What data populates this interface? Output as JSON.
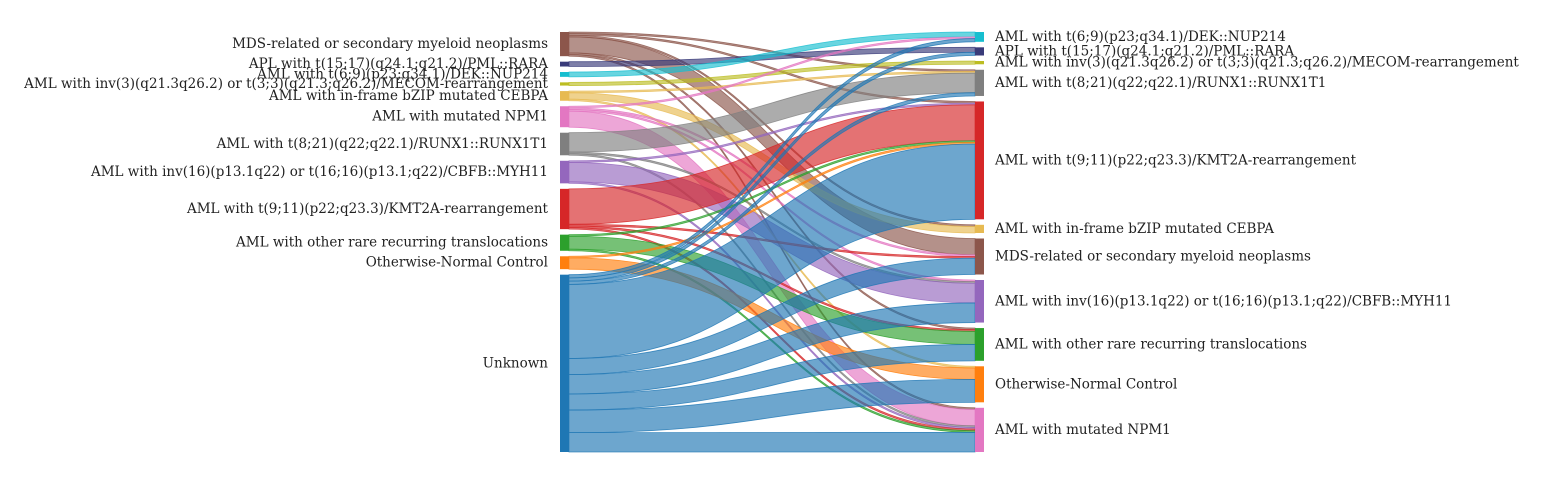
{
  "chart_data": {
    "type": "sankey",
    "left_nodes": [
      {
        "id": "mds",
        "label": "MDS-related or secondary myeloid neoplasms",
        "color": "#8c564b"
      },
      {
        "id": "apl",
        "label": "APL with t(15;17)(q24.1;q21.2)/PML::RARA",
        "color": "#393b79"
      },
      {
        "id": "dek",
        "label": "AML with t(6;9)(p23;q34.1)/DEK::NUP214",
        "color": "#17becf"
      },
      {
        "id": "mecom",
        "label": "AML with inv(3)(q21.3q26.2) or t(3;3)(q21.3;q26.2)/MECOM-rearrangement",
        "color": "#bcbd22"
      },
      {
        "id": "cebpa",
        "label": "AML with in-frame bZIP mutated CEBPA",
        "color": "#e7ba52"
      },
      {
        "id": "npm1",
        "label": "AML with mutated NPM1",
        "color": "#e377c2"
      },
      {
        "id": "runx1",
        "label": "AML with t(8;21)(q22;q22.1)/RUNX1::RUNX1T1",
        "color": "#7f7f7f"
      },
      {
        "id": "cbfb",
        "label": "AML with inv(16)(p13.1q22) or t(16;16)(p13.1;q22)/CBFB::MYH11",
        "color": "#9467bd"
      },
      {
        "id": "kmt2a",
        "label": "AML with t(9;11)(p22;q23.3)/KMT2A-rearrangement",
        "color": "#d62728"
      },
      {
        "id": "rare",
        "label": "AML with other rare recurring translocations",
        "color": "#2ca02c"
      },
      {
        "id": "normal",
        "label": "Otherwise-Normal Control",
        "color": "#ff7f0e"
      },
      {
        "id": "unknown",
        "label": "Unknown",
        "color": "#1f77b4"
      }
    ],
    "right_nodes": [
      {
        "id": "dek",
        "label": "AML with t(6;9)(p23;q34.1)/DEK::NUP214",
        "color": "#17becf"
      },
      {
        "id": "apl",
        "label": "APL with t(15;17)(q24.1;q21.2)/PML::RARA",
        "color": "#393b79"
      },
      {
        "id": "mecom",
        "label": "AML with inv(3)(q21.3q26.2) or t(3;3)(q21.3;q26.2)/MECOM-rearrangement",
        "color": "#bcbd22"
      },
      {
        "id": "runx1",
        "label": "AML with t(8;21)(q22;q22.1)/RUNX1::RUNX1T1",
        "color": "#7f7f7f"
      },
      {
        "id": "kmt2a",
        "label": "AML with t(9;11)(p22;q23.3)/KMT2A-rearrangement",
        "color": "#d62728"
      },
      {
        "id": "cebpa",
        "label": "AML with in-frame bZIP mutated CEBPA",
        "color": "#e7ba52"
      },
      {
        "id": "mds",
        "label": "MDS-related or secondary myeloid neoplasms",
        "color": "#8c564b"
      },
      {
        "id": "cbfb",
        "label": "AML with inv(16)(p13.1q22) or t(16;16)(p13.1;q22)/CBFB::MYH11",
        "color": "#9467bd"
      },
      {
        "id": "rare",
        "label": "AML with other rare recurring translocations",
        "color": "#2ca02c"
      },
      {
        "id": "normal",
        "label": "Otherwise-Normal Control",
        "color": "#ff7f0e"
      },
      {
        "id": "npm1",
        "label": "AML with mutated NPM1",
        "color": "#e377c2"
      }
    ],
    "flows": [
      {
        "source": "mds",
        "target": "mds",
        "value": 10
      },
      {
        "source": "mds",
        "target": "npm1",
        "value": 1
      },
      {
        "source": "mds",
        "target": "kmt2a",
        "value": 1
      },
      {
        "source": "mds",
        "target": "runx1",
        "value": 1
      },
      {
        "source": "mds",
        "target": "cebpa",
        "value": 1
      },
      {
        "source": "mds",
        "target": "rare",
        "value": 1
      },
      {
        "source": "apl",
        "target": "apl",
        "value": 3
      },
      {
        "source": "dek",
        "target": "dek",
        "value": 3
      },
      {
        "source": "mecom",
        "target": "mecom",
        "value": 2
      },
      {
        "source": "cebpa",
        "target": "cebpa",
        "value": 4
      },
      {
        "source": "cebpa",
        "target": "runx1",
        "value": 1
      },
      {
        "source": "cebpa",
        "target": "normal",
        "value": 1
      },
      {
        "source": "npm1",
        "target": "npm1",
        "value": 10
      },
      {
        "source": "npm1",
        "target": "dek",
        "value": 1
      },
      {
        "source": "npm1",
        "target": "cbfb",
        "value": 1
      },
      {
        "source": "npm1",
        "target": "mds",
        "value": 1
      },
      {
        "source": "runx1",
        "target": "runx1",
        "value": 12
      },
      {
        "source": "runx1",
        "target": "cbfb",
        "value": 1
      },
      {
        "source": "runx1",
        "target": "npm1",
        "value": 1
      },
      {
        "source": "cbfb",
        "target": "cbfb",
        "value": 12
      },
      {
        "source": "cbfb",
        "target": "kmt2a",
        "value": 1
      },
      {
        "source": "cbfb",
        "target": "npm1",
        "value": 1
      },
      {
        "source": "kmt2a",
        "target": "kmt2a",
        "value": 22
      },
      {
        "source": "kmt2a",
        "target": "rare",
        "value": 1
      },
      {
        "source": "kmt2a",
        "target": "mds",
        "value": 1
      },
      {
        "source": "kmt2a",
        "target": "npm1",
        "value": 1
      },
      {
        "source": "rare",
        "target": "rare",
        "value": 8
      },
      {
        "source": "rare",
        "target": "kmt2a",
        "value": 1
      },
      {
        "source": "rare",
        "target": "npm1",
        "value": 1
      },
      {
        "source": "normal",
        "target": "normal",
        "value": 7
      },
      {
        "source": "normal",
        "target": "kmt2a",
        "value": 1
      },
      {
        "source": "unknown",
        "target": "dek",
        "value": 2
      },
      {
        "source": "unknown",
        "target": "apl",
        "value": 2
      },
      {
        "source": "unknown",
        "target": "kmt2a",
        "value": 46
      },
      {
        "source": "unknown",
        "target": "runx1",
        "value": 2
      },
      {
        "source": "unknown",
        "target": "mds",
        "value": 10
      },
      {
        "source": "unknown",
        "target": "cbfb",
        "value": 12
      },
      {
        "source": "unknown",
        "target": "rare",
        "value": 10
      },
      {
        "source": "unknown",
        "target": "normal",
        "value": 14
      },
      {
        "source": "unknown",
        "target": "npm1",
        "value": 12
      }
    ]
  }
}
